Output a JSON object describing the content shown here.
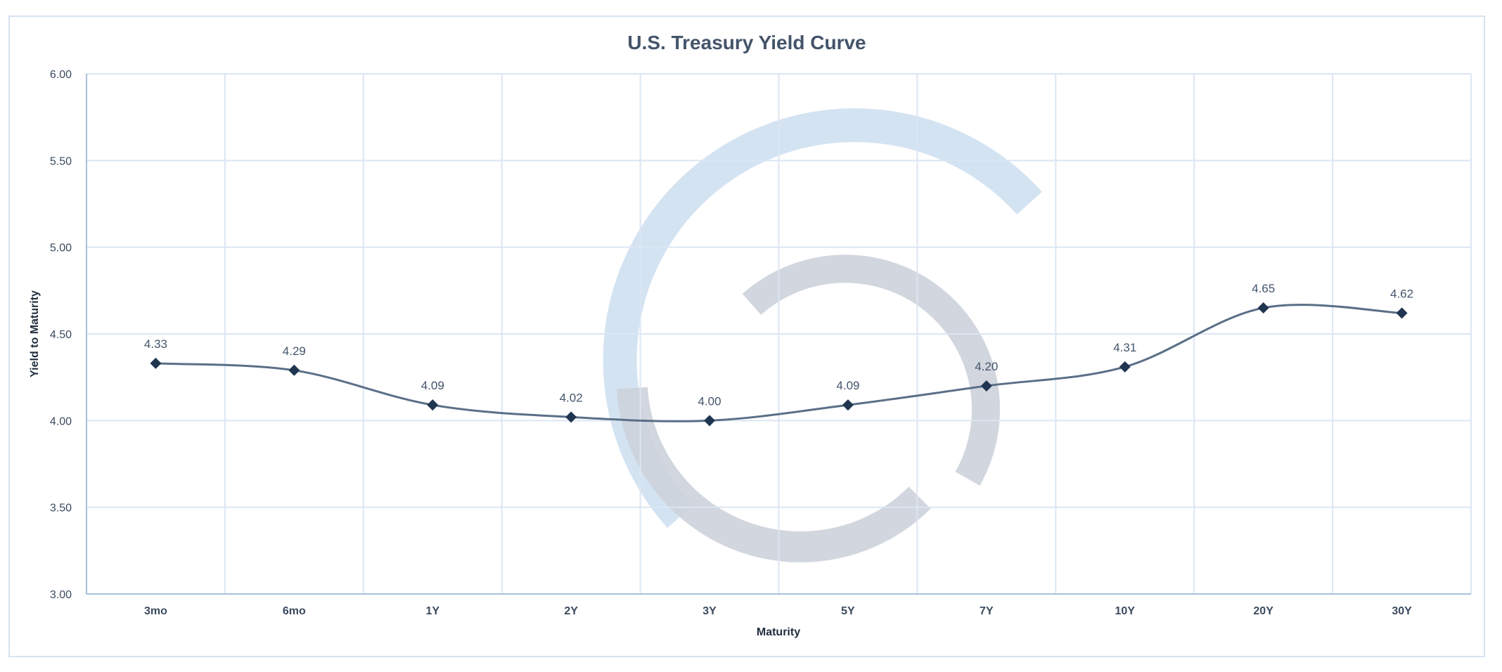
{
  "chart_data": {
    "type": "line",
    "title": "U.S. Treasury Yield Curve",
    "xlabel": "Maturity",
    "ylabel": "Yield to Maturity",
    "categories": [
      "3mo",
      "6mo",
      "1Y",
      "2Y",
      "3Y",
      "5Y",
      "7Y",
      "10Y",
      "20Y",
      "30Y"
    ],
    "values": [
      4.33,
      4.29,
      4.09,
      4.02,
      4.0,
      4.09,
      4.2,
      4.31,
      4.65,
      4.62
    ],
    "data_labels": [
      "4.33",
      "4.29",
      "4.09",
      "4.02",
      "4.00",
      "4.09",
      "4.20",
      "4.31",
      "4.65",
      "4.62"
    ],
    "ylim": [
      3.0,
      6.0
    ],
    "yticks": [
      "3.00",
      "3.50",
      "4.00",
      "4.50",
      "5.00",
      "5.50",
      "6.00"
    ],
    "grid": true,
    "smooth": true,
    "marker": "diamond",
    "legend": "none",
    "colors": {
      "line": "#5a6f87",
      "marker": "#1f3550",
      "grid": "#dbe6f3",
      "watermark_blue": "#cfe0f1",
      "watermark_grey": "#cdd1da"
    }
  }
}
